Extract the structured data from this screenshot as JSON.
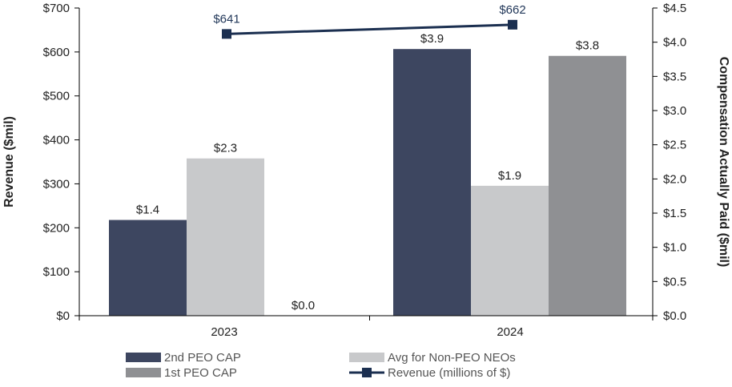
{
  "chart_data": {
    "type": "bar",
    "categories": [
      "2023",
      "2024"
    ],
    "bar_series": [
      {
        "name": "2nd PEO CAP",
        "values": [
          1.4,
          3.9
        ],
        "labels": [
          "$1.4",
          "$3.9"
        ],
        "color": "#3d4660"
      },
      {
        "name": "Avg for Non-PEO NEOs",
        "values": [
          2.3,
          1.9
        ],
        "labels": [
          "$2.3",
          "$1.9"
        ],
        "color": "#c8c9cb"
      },
      {
        "name": "1st PEO CAP",
        "values": [
          0.0,
          3.8
        ],
        "labels": [
          "$0.0",
          "$3.8"
        ],
        "color": "#8f9093"
      }
    ],
    "line_series": {
      "name": "Revenue (millions of $)",
      "values": [
        641,
        662
      ],
      "labels": [
        "$641",
        "$662"
      ],
      "color": "#1b2f50"
    },
    "left_axis": {
      "title": "Revenue ($mil)",
      "range": [
        0,
        700
      ],
      "ticks": [
        "$0",
        "$100",
        "$200",
        "$300",
        "$400",
        "$500",
        "$600",
        "$700"
      ]
    },
    "right_axis": {
      "title": "Compensation Actually Paid ($mil)",
      "range": [
        0,
        4.5
      ],
      "ticks": [
        "$0.0",
        "$0.5",
        "$1.0",
        "$1.5",
        "$2.0",
        "$2.5",
        "$3.0",
        "$3.5",
        "$4.0",
        "$4.5"
      ]
    },
    "legend": {
      "placement": "bottom",
      "order": [
        "2nd PEO CAP",
        "Avg for Non-PEO NEOs",
        "1st PEO CAP",
        "Revenue (millions of $)"
      ]
    },
    "grid": false
  }
}
